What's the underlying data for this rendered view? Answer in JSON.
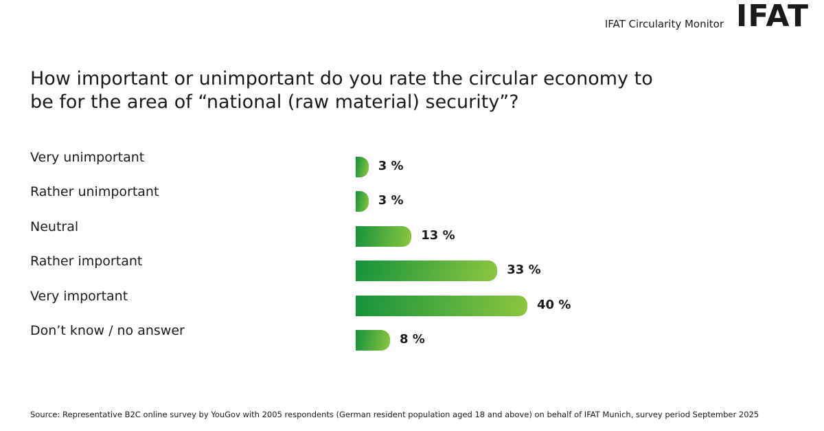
{
  "header": {
    "monitor": "IFAT Circularity Monitor",
    "logo": "IFAT"
  },
  "chart_data": {
    "type": "bar",
    "orientation": "horizontal",
    "title": "How important or unimportant do you rate the circular economy to be for the area of “national (raw material) security”?",
    "categories": [
      "Very unimportant",
      "Rather unimportant",
      "Neutral",
      "Rather important",
      "Very important",
      "Don’t know / no answer"
    ],
    "values": [
      3,
      3,
      13,
      33,
      40,
      8
    ],
    "value_labels": [
      "3 %",
      "3 %",
      "13 %",
      "33 %",
      "40 %",
      "8 %"
    ],
    "gradient": [
      "#15923c",
      "#8cc63f"
    ]
  },
  "footer": {
    "source": "Source: Representative B2C online survey by YouGov with 2005 respondents (German resident population aged 18 and above) on behalf of IFAT Munich, survey period September 2025"
  }
}
